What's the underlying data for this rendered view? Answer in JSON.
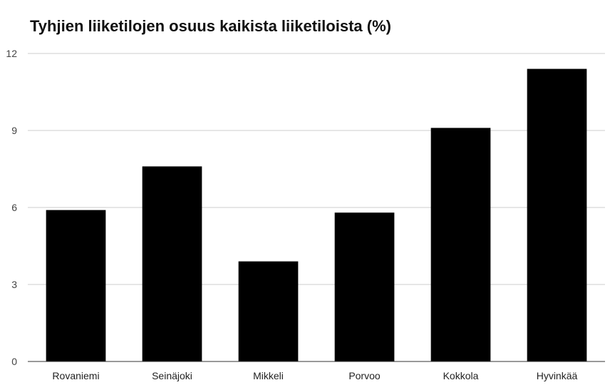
{
  "chart_data": {
    "type": "bar",
    "title": "Tyhjien liiketilojen osuus kaikista liiketiloista (%)",
    "xlabel": "",
    "ylabel": "",
    "categories": [
      "Rovaniemi",
      "Seinäjoki",
      "Mikkeli",
      "Porvoo",
      "Kokkola",
      "Hyvinkää"
    ],
    "values": [
      5.9,
      7.6,
      3.9,
      5.8,
      9.1,
      11.4
    ],
    "ylim": [
      0,
      12
    ],
    "yticks": [
      "0",
      "3",
      "6",
      "9",
      "12"
    ],
    "grid": true,
    "legend": "none",
    "colors": {
      "bar": "#000000",
      "grid": "#cccccc",
      "axis": "#333333"
    }
  }
}
